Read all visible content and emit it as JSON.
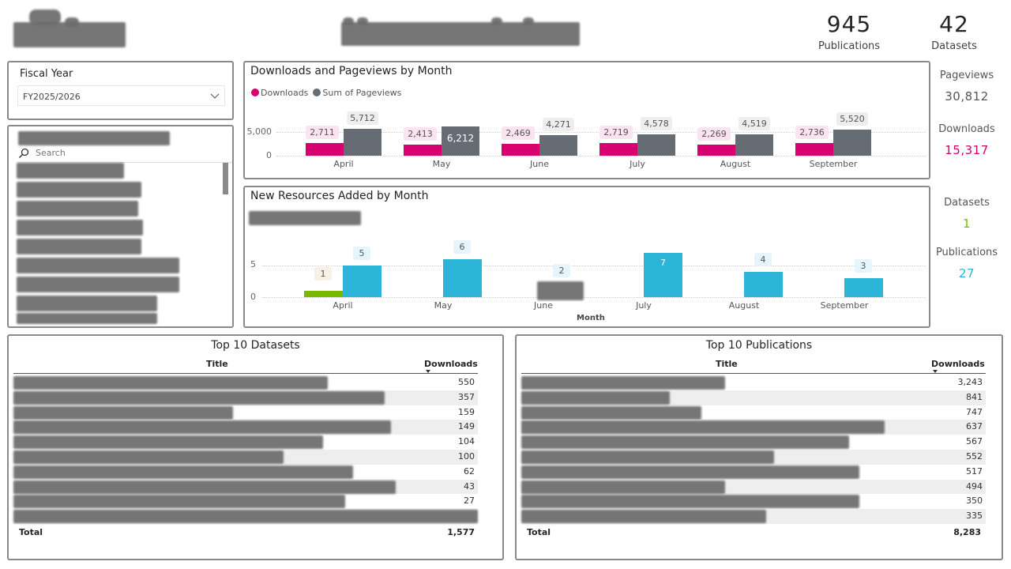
{
  "header": {
    "logo": "[redacted logo]",
    "title": "[redacted report title]"
  },
  "kpis": {
    "publications": {
      "value": "945",
      "label": "Publications"
    },
    "datasets": {
      "value": "42",
      "label": "Datasets"
    }
  },
  "side_kpis": {
    "pageviews": {
      "label": "Pageviews",
      "value": "30,812",
      "color": "#555555"
    },
    "downloads": {
      "label": "Downloads",
      "value": "15,317",
      "color": "#d6006e"
    },
    "datasets": {
      "label": "Datasets",
      "value": "1",
      "color": "#7ab800"
    },
    "publications": {
      "label": "Publications",
      "value": "27",
      "color": "#2cb5d8"
    }
  },
  "slicer": {
    "label": "Fiscal Year",
    "selected": "FY2025/2026"
  },
  "list_slicer": {
    "title": "[redacted]",
    "search_placeholder": "Search",
    "items": [
      "[redacted]",
      "[redacted]",
      "[redacted]",
      "[redacted]",
      "[redacted]",
      "[redacted]",
      "[redacted]",
      "[redacted]",
      "[redacted]"
    ]
  },
  "chart_data": [
    {
      "type": "bar",
      "title": "Downloads and Pageviews by Month",
      "categories": [
        "April",
        "May",
        "June",
        "July",
        "August",
        "September"
      ],
      "series": [
        {
          "name": "Downloads",
          "color": "#d6006e",
          "values": [
            2711,
            2413,
            2469,
            2719,
            2269,
            2736
          ],
          "labels": [
            "2,711",
            "2,413",
            "2,469",
            "2,719",
            "2,269",
            "2,736"
          ]
        },
        {
          "name": "Sum of Pageviews",
          "color": "#666c73",
          "values": [
            5712,
            6212,
            4271,
            4578,
            4519,
            5520
          ],
          "labels": [
            "5,712",
            "6,212",
            "4,271",
            "4,578",
            "4,519",
            "5,520"
          ]
        }
      ],
      "yticks": [
        "5,000",
        "0"
      ],
      "ylim": [
        0,
        10000
      ],
      "legend_position": "top-left",
      "grid": true,
      "xlabel": "",
      "ylabel": ""
    },
    {
      "type": "bar",
      "title": "New Resources Added by Month",
      "subtitle": "[redacted legend]",
      "categories": [
        "April",
        "May",
        "June",
        "July",
        "August",
        "September"
      ],
      "series": [
        {
          "name": "Datasets",
          "color": "#7ab800",
          "values": [
            1,
            0,
            0,
            0,
            0,
            0
          ],
          "labels": [
            "1",
            "",
            "",
            "",
            "",
            ""
          ]
        },
        {
          "name": "Publications",
          "color": "#2cb5d8",
          "values": [
            5,
            6,
            2,
            7,
            4,
            3
          ],
          "labels": [
            "5",
            "6",
            "2",
            "7",
            "4",
            "3"
          ]
        }
      ],
      "yticks": [
        "5",
        "0"
      ],
      "ylim": [
        0,
        10
      ],
      "xlabel": "Month",
      "ylabel": "",
      "grid": true
    }
  ],
  "top_datasets": {
    "title": "Top 10 Datasets",
    "col_title": "Title",
    "col_downloads": "Downloads",
    "rows": [
      {
        "title": "[redacted]",
        "downloads": "550"
      },
      {
        "title": "[redacted]",
        "downloads": "357"
      },
      {
        "title": "[redacted]",
        "downloads": "159"
      },
      {
        "title": "[redacted]",
        "downloads": "149"
      },
      {
        "title": "[redacted]",
        "downloads": "104"
      },
      {
        "title": "[redacted]",
        "downloads": "100"
      },
      {
        "title": "[redacted]",
        "downloads": "62"
      },
      {
        "title": "[redacted]",
        "downloads": "43"
      },
      {
        "title": "[redacted]",
        "downloads": "27"
      },
      {
        "title": "[redacted]",
        "downloads": ""
      }
    ],
    "total_label": "Total",
    "total_value": "1,577"
  },
  "top_publications": {
    "title": "Top 10 Publications",
    "col_title": "Title",
    "col_downloads": "Downloads",
    "rows": [
      {
        "title": "[redacted]",
        "downloads": "3,243"
      },
      {
        "title": "[redacted]",
        "downloads": "841"
      },
      {
        "title": "[redacted]",
        "downloads": "747"
      },
      {
        "title": "[redacted]",
        "downloads": "637"
      },
      {
        "title": "[redacted]",
        "downloads": "567"
      },
      {
        "title": "[redacted]",
        "downloads": "552"
      },
      {
        "title": "[redacted]",
        "downloads": "517"
      },
      {
        "title": "[redacted]",
        "downloads": "494"
      },
      {
        "title": "[redacted]",
        "downloads": "350"
      },
      {
        "title": "[redacted] ...ng ... ...udy ...",
        "downloads": "335"
      }
    ],
    "total_label": "Total",
    "total_value": "8,283"
  }
}
